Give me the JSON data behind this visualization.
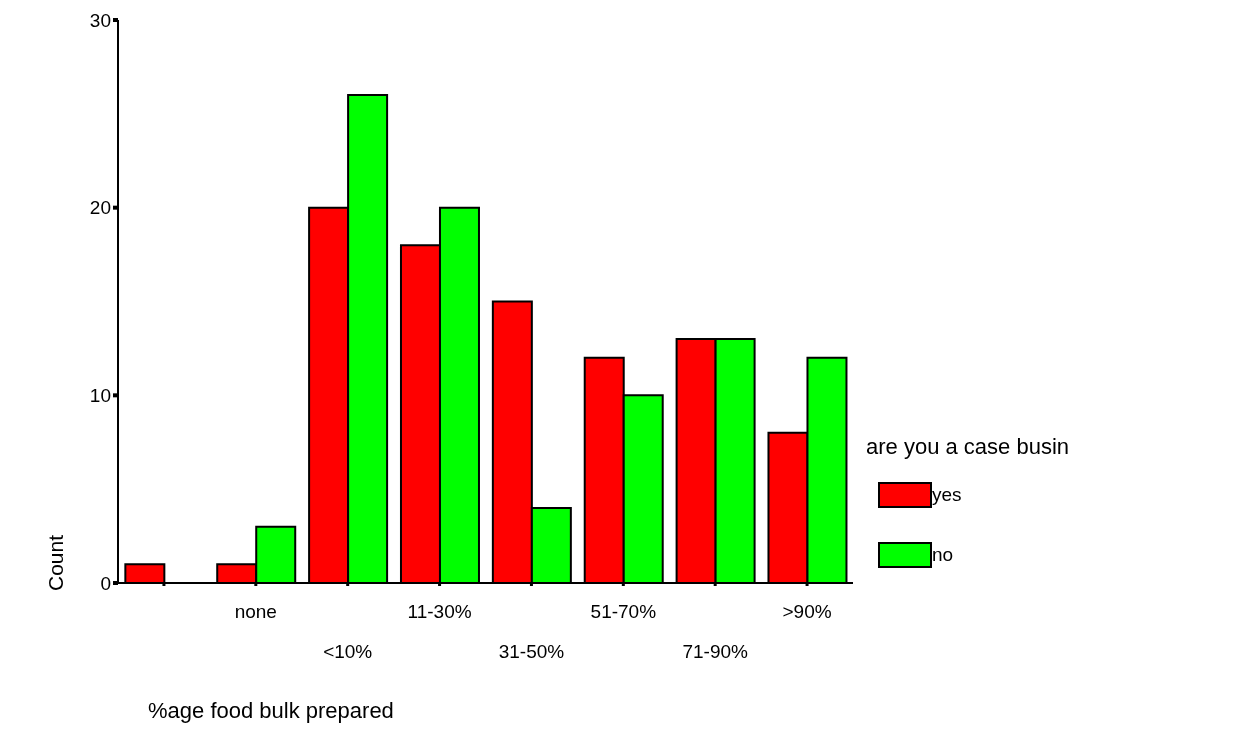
{
  "chart_data": {
    "type": "bar",
    "xlabel": "%age food bulk prepared",
    "ylabel": "Count",
    "legend_title": "are you a case busin",
    "categories": [
      null,
      "none",
      "<10%",
      "11-30%",
      "31-50%",
      "51-70%",
      "71-90%",
      ">90%"
    ],
    "series": [
      {
        "name": "yes",
        "color": "#ff0000",
        "values": [
          1,
          1,
          20,
          18,
          15,
          12,
          13,
          8
        ]
      },
      {
        "name": "no",
        "color": "#00ff00",
        "values": [
          null,
          3,
          26,
          20,
          4,
          10,
          13,
          12
        ]
      }
    ],
    "ylim": [
      0,
      30
    ],
    "yticks": [
      0,
      10,
      20,
      30
    ],
    "grid": false,
    "legend": "right"
  }
}
